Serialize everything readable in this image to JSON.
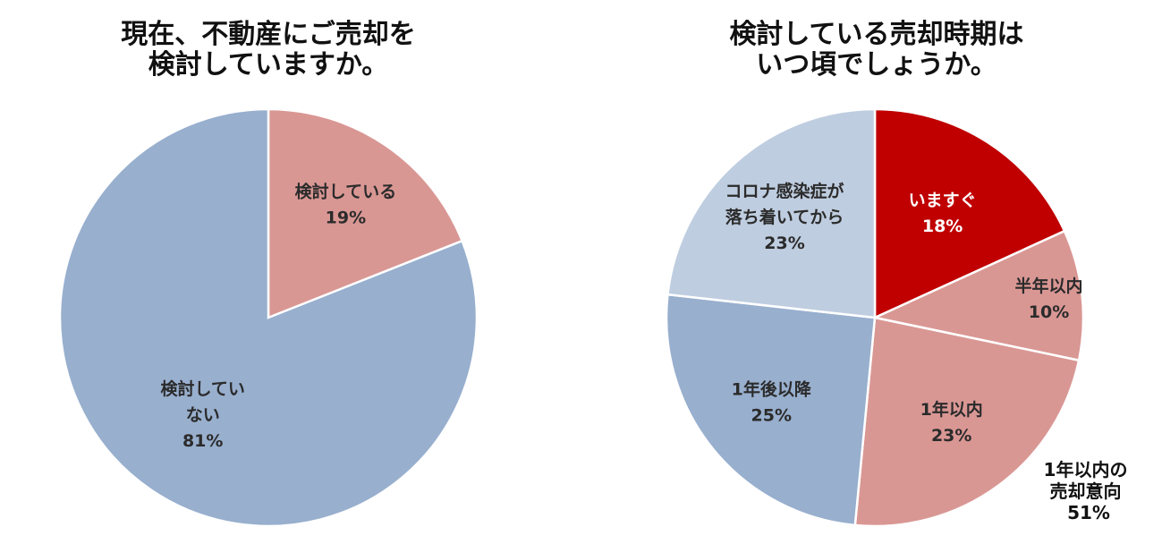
{
  "chart_data": [
    {
      "type": "pie",
      "title": [
        "現在、不動産にご売却を",
        "検討していますか。"
      ],
      "slices": [
        {
          "label": [
            "検討している"
          ],
          "value": 19,
          "value_label": "19%",
          "color": "#d99794"
        },
        {
          "label": [
            "検討してい",
            "ない"
          ],
          "value": 81,
          "value_label": "81%",
          "color": "#98afce"
        }
      ]
    },
    {
      "type": "pie",
      "title": [
        "検討している売却時期は",
        "いつ頃でしょうか。"
      ],
      "slices": [
        {
          "label": [
            "いますぐ"
          ],
          "value": 18,
          "value_label": "18%",
          "color": "#c00000"
        },
        {
          "label": [
            "半年以内"
          ],
          "value": 10,
          "value_label": "10%",
          "color": "#d99794"
        },
        {
          "label": [
            "1年以内"
          ],
          "value": 23,
          "value_label": "23%",
          "color": "#d99794"
        },
        {
          "label": [
            "1年後以降"
          ],
          "value": 25,
          "value_label": "25%",
          "color": "#98afce"
        },
        {
          "label": [
            "コロナ感染症が",
            "落ち着いてから"
          ],
          "value": 23,
          "value_label": "23%",
          "color": "#bfcde0"
        }
      ],
      "annotation": [
        "1年以内の",
        "売却意向",
        "51%"
      ]
    }
  ]
}
